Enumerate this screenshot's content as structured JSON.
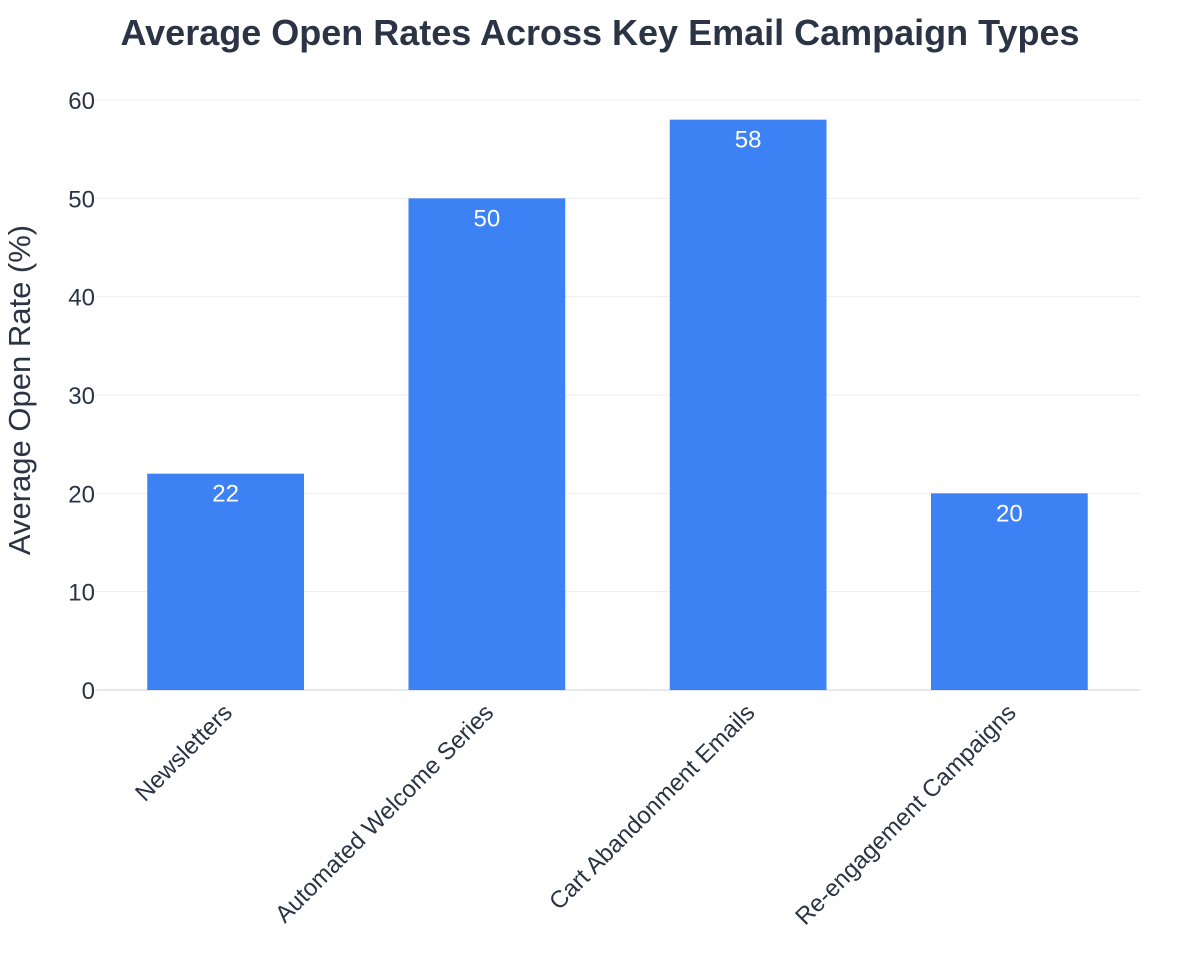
{
  "colors": {
    "bar": "#3d82f4",
    "text": "#2a3444",
    "grid": "#eceef2",
    "data_label": "#ffffff",
    "background": "#ffffff"
  },
  "chart_data": {
    "type": "bar",
    "title": "Average Open Rates Across Key Email Campaign Types",
    "xlabel": "",
    "ylabel": "Average Open Rate (%)",
    "categories": [
      "Newsletters",
      "Automated Welcome Series",
      "Cart Abandonment Emails",
      "Re-engagement Campaigns"
    ],
    "values": [
      22,
      50,
      58,
      20
    ],
    "ylim": [
      0,
      60
    ],
    "yticks": [
      0,
      10,
      20,
      30,
      40,
      50,
      60
    ],
    "grid": true,
    "legend": "none",
    "data_labels": "inside-top"
  }
}
